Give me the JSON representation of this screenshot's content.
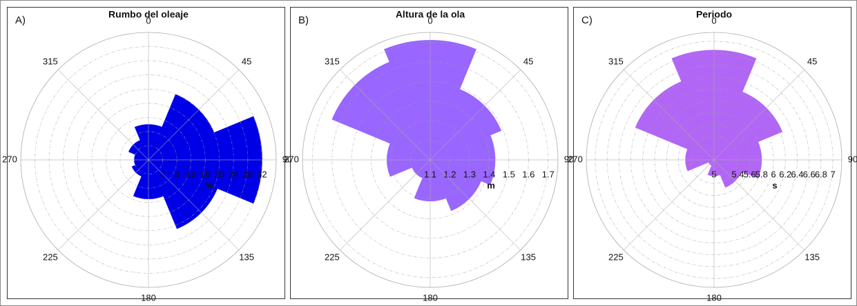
{
  "chart_data": [
    {
      "type": "rose",
      "label": "A)",
      "title": "Rumbo del oleaje",
      "ylabel": "%",
      "color": "#0000e6",
      "x": [
        0,
        45,
        90,
        135,
        180,
        225,
        270,
        315
      ],
      "values": [
        10,
        20,
        32,
        21,
        11,
        5,
        4,
        6
      ],
      "xticks": [
        0,
        45,
        90,
        135,
        180,
        225,
        270,
        315
      ],
      "ylim": [
        0,
        36
      ],
      "yticks": [
        4,
        8,
        12,
        16,
        20,
        24,
        28,
        32
      ]
    },
    {
      "type": "rose",
      "label": "B)",
      "title": "Altura de la ola",
      "ylabel": "m",
      "color": "#9966ff",
      "x": [
        0,
        45,
        90,
        135,
        180,
        225,
        270,
        315
      ],
      "values": [
        1.71,
        1.49,
        1.43,
        1.38,
        1.31,
        1.2,
        1.32,
        1.64
      ],
      "xticks": [
        0,
        45,
        90,
        135,
        180,
        225,
        270,
        315
      ],
      "ylim": [
        1.1,
        1.75
      ],
      "yticks": [
        1.1,
        1.2,
        1.3,
        1.4,
        1.5,
        1.6,
        1.7
      ]
    },
    {
      "type": "rose",
      "label": "C)",
      "title": "Periodo",
      "ylabel": "s",
      "color": "#b266f5",
      "x": [
        0,
        45,
        90,
        135,
        180,
        225,
        270,
        315
      ],
      "values": [
        6.85,
        6.24,
        5.8,
        5.5,
        5.27,
        5.1,
        5.48,
        6.43
      ],
      "xticks": [
        0,
        45,
        90,
        135,
        180,
        225,
        270,
        315
      ],
      "ylim": [
        5,
        7.15
      ],
      "yticks": [
        5,
        5.4,
        5.6,
        5.8,
        6,
        6.2,
        6.4,
        6.6,
        6.8,
        7
      ]
    }
  ]
}
